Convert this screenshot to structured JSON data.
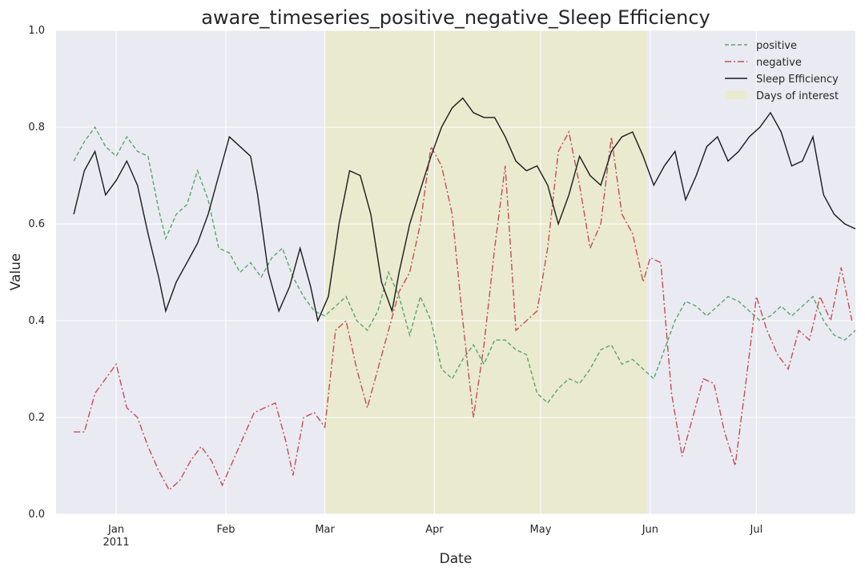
{
  "chart_data": {
    "type": "line",
    "title": "aware_timeseries_positive_negative_Sleep Efficiency",
    "xlabel": "Date",
    "ylabel": "Value",
    "ylim": [
      0,
      1
    ],
    "xlim": [
      "2010-12-15",
      "2011-07-29"
    ],
    "yticks": [
      0.0,
      0.2,
      0.4,
      0.6,
      0.8,
      1.0
    ],
    "ytick_labels": [
      "0.0",
      "0.2",
      "0.4",
      "0.6",
      "0.8",
      "1.0"
    ],
    "xticks": [
      {
        "date": "2011-01-01",
        "label": "Jan",
        "sublabel": "2011"
      },
      {
        "date": "2011-02-01",
        "label": "Feb",
        "sublabel": ""
      },
      {
        "date": "2011-03-01",
        "label": "Mar",
        "sublabel": ""
      },
      {
        "date": "2011-04-01",
        "label": "Apr",
        "sublabel": ""
      },
      {
        "date": "2011-05-01",
        "label": "May",
        "sublabel": ""
      },
      {
        "date": "2011-06-01",
        "label": "Jun",
        "sublabel": ""
      },
      {
        "date": "2011-07-01",
        "label": "Jul",
        "sublabel": ""
      }
    ],
    "grid": true,
    "legend_position": "top-right",
    "highlight": {
      "name": "Days of interest",
      "start": "2011-03-01",
      "end": "2011-05-31",
      "color": "#eaeacf"
    },
    "series": [
      {
        "name": "positive",
        "color": "#55a868",
        "style": "dashed",
        "points": [
          [
            "2010-12-20",
            0.73
          ],
          [
            "2010-12-23",
            0.77
          ],
          [
            "2010-12-26",
            0.8
          ],
          [
            "2010-12-29",
            0.76
          ],
          [
            "2011-01-01",
            0.74
          ],
          [
            "2011-01-04",
            0.78
          ],
          [
            "2011-01-07",
            0.75
          ],
          [
            "2011-01-10",
            0.74
          ],
          [
            "2011-01-13",
            0.63
          ],
          [
            "2011-01-15",
            0.57
          ],
          [
            "2011-01-18",
            0.62
          ],
          [
            "2011-01-21",
            0.64
          ],
          [
            "2011-01-24",
            0.71
          ],
          [
            "2011-01-27",
            0.65
          ],
          [
            "2011-01-30",
            0.55
          ],
          [
            "2011-02-02",
            0.54
          ],
          [
            "2011-02-05",
            0.5
          ],
          [
            "2011-02-08",
            0.52
          ],
          [
            "2011-02-11",
            0.49
          ],
          [
            "2011-02-14",
            0.53
          ],
          [
            "2011-02-17",
            0.55
          ],
          [
            "2011-02-20",
            0.49
          ],
          [
            "2011-02-23",
            0.45
          ],
          [
            "2011-02-26",
            0.42
          ],
          [
            "2011-03-01",
            0.41
          ],
          [
            "2011-03-04",
            0.43
          ],
          [
            "2011-03-07",
            0.45
          ],
          [
            "2011-03-10",
            0.4
          ],
          [
            "2011-03-13",
            0.38
          ],
          [
            "2011-03-16",
            0.42
          ],
          [
            "2011-03-19",
            0.5
          ],
          [
            "2011-03-22",
            0.45
          ],
          [
            "2011-03-25",
            0.37
          ],
          [
            "2011-03-28",
            0.45
          ],
          [
            "2011-03-31",
            0.4
          ],
          [
            "2011-04-03",
            0.3
          ],
          [
            "2011-04-06",
            0.28
          ],
          [
            "2011-04-09",
            0.32
          ],
          [
            "2011-04-12",
            0.35
          ],
          [
            "2011-04-15",
            0.31
          ],
          [
            "2011-04-18",
            0.36
          ],
          [
            "2011-04-21",
            0.36
          ],
          [
            "2011-04-24",
            0.34
          ],
          [
            "2011-04-27",
            0.33
          ],
          [
            "2011-04-30",
            0.25
          ],
          [
            "2011-05-03",
            0.23
          ],
          [
            "2011-05-06",
            0.26
          ],
          [
            "2011-05-09",
            0.28
          ],
          [
            "2011-05-12",
            0.27
          ],
          [
            "2011-05-15",
            0.3
          ],
          [
            "2011-05-18",
            0.34
          ],
          [
            "2011-05-21",
            0.35
          ],
          [
            "2011-05-24",
            0.31
          ],
          [
            "2011-05-27",
            0.32
          ],
          [
            "2011-05-30",
            0.3
          ],
          [
            "2011-06-02",
            0.28
          ],
          [
            "2011-06-05",
            0.34
          ],
          [
            "2011-06-08",
            0.4
          ],
          [
            "2011-06-11",
            0.44
          ],
          [
            "2011-06-14",
            0.43
          ],
          [
            "2011-06-17",
            0.41
          ],
          [
            "2011-06-20",
            0.43
          ],
          [
            "2011-06-23",
            0.45
          ],
          [
            "2011-06-26",
            0.44
          ],
          [
            "2011-06-29",
            0.42
          ],
          [
            "2011-07-02",
            0.4
          ],
          [
            "2011-07-05",
            0.41
          ],
          [
            "2011-07-08",
            0.43
          ],
          [
            "2011-07-11",
            0.41
          ],
          [
            "2011-07-14",
            0.43
          ],
          [
            "2011-07-17",
            0.45
          ],
          [
            "2011-07-20",
            0.4
          ],
          [
            "2011-07-23",
            0.37
          ],
          [
            "2011-07-26",
            0.36
          ],
          [
            "2011-07-29",
            0.38
          ]
        ]
      },
      {
        "name": "negative",
        "color": "#c44e52",
        "style": "dashdot",
        "points": [
          [
            "2010-12-20",
            0.17
          ],
          [
            "2010-12-23",
            0.17
          ],
          [
            "2010-12-26",
            0.25
          ],
          [
            "2010-12-29",
            0.28
          ],
          [
            "2011-01-01",
            0.31
          ],
          [
            "2011-01-04",
            0.22
          ],
          [
            "2011-01-07",
            0.2
          ],
          [
            "2011-01-10",
            0.14
          ],
          [
            "2011-01-13",
            0.09
          ],
          [
            "2011-01-16",
            0.05
          ],
          [
            "2011-01-19",
            0.07
          ],
          [
            "2011-01-22",
            0.11
          ],
          [
            "2011-01-25",
            0.14
          ],
          [
            "2011-01-28",
            0.11
          ],
          [
            "2011-01-31",
            0.06
          ],
          [
            "2011-02-03",
            0.11
          ],
          [
            "2011-02-06",
            0.16
          ],
          [
            "2011-02-09",
            0.21
          ],
          [
            "2011-02-12",
            0.22
          ],
          [
            "2011-02-15",
            0.23
          ],
          [
            "2011-02-18",
            0.15
          ],
          [
            "2011-02-20",
            0.08
          ],
          [
            "2011-02-23",
            0.2
          ],
          [
            "2011-02-26",
            0.21
          ],
          [
            "2011-03-01",
            0.18
          ],
          [
            "2011-03-04",
            0.38
          ],
          [
            "2011-03-07",
            0.4
          ],
          [
            "2011-03-10",
            0.3
          ],
          [
            "2011-03-13",
            0.22
          ],
          [
            "2011-03-16",
            0.3
          ],
          [
            "2011-03-19",
            0.38
          ],
          [
            "2011-03-22",
            0.46
          ],
          [
            "2011-03-25",
            0.5
          ],
          [
            "2011-03-28",
            0.6
          ],
          [
            "2011-03-31",
            0.76
          ],
          [
            "2011-04-03",
            0.72
          ],
          [
            "2011-04-06",
            0.62
          ],
          [
            "2011-04-09",
            0.4
          ],
          [
            "2011-04-12",
            0.2
          ],
          [
            "2011-04-15",
            0.35
          ],
          [
            "2011-04-18",
            0.55
          ],
          [
            "2011-04-21",
            0.72
          ],
          [
            "2011-04-24",
            0.38
          ],
          [
            "2011-04-27",
            0.4
          ],
          [
            "2011-04-30",
            0.42
          ],
          [
            "2011-05-03",
            0.55
          ],
          [
            "2011-05-06",
            0.75
          ],
          [
            "2011-05-09",
            0.79
          ],
          [
            "2011-05-12",
            0.68
          ],
          [
            "2011-05-15",
            0.55
          ],
          [
            "2011-05-18",
            0.6
          ],
          [
            "2011-05-21",
            0.78
          ],
          [
            "2011-05-24",
            0.62
          ],
          [
            "2011-05-27",
            0.58
          ],
          [
            "2011-05-30",
            0.48
          ],
          [
            "2011-06-01",
            0.53
          ],
          [
            "2011-06-04",
            0.52
          ],
          [
            "2011-06-07",
            0.25
          ],
          [
            "2011-06-10",
            0.12
          ],
          [
            "2011-06-13",
            0.2
          ],
          [
            "2011-06-16",
            0.28
          ],
          [
            "2011-06-19",
            0.27
          ],
          [
            "2011-06-22",
            0.17
          ],
          [
            "2011-06-25",
            0.1
          ],
          [
            "2011-06-28",
            0.27
          ],
          [
            "2011-07-01",
            0.45
          ],
          [
            "2011-07-04",
            0.38
          ],
          [
            "2011-07-07",
            0.33
          ],
          [
            "2011-07-10",
            0.3
          ],
          [
            "2011-07-13",
            0.38
          ],
          [
            "2011-07-16",
            0.36
          ],
          [
            "2011-07-19",
            0.45
          ],
          [
            "2011-07-22",
            0.4
          ],
          [
            "2011-07-25",
            0.51
          ],
          [
            "2011-07-28",
            0.4
          ]
        ]
      },
      {
        "name": "Sleep Efficiency",
        "color": "#1a1a1a",
        "style": "solid",
        "points": [
          [
            "2010-12-20",
            0.62
          ],
          [
            "2010-12-23",
            0.71
          ],
          [
            "2010-12-26",
            0.75
          ],
          [
            "2010-12-29",
            0.66
          ],
          [
            "2011-01-01",
            0.69
          ],
          [
            "2011-01-04",
            0.73
          ],
          [
            "2011-01-07",
            0.68
          ],
          [
            "2011-01-10",
            0.58
          ],
          [
            "2011-01-13",
            0.49
          ],
          [
            "2011-01-15",
            0.42
          ],
          [
            "2011-01-18",
            0.48
          ],
          [
            "2011-01-21",
            0.52
          ],
          [
            "2011-01-24",
            0.56
          ],
          [
            "2011-01-27",
            0.62
          ],
          [
            "2011-01-30",
            0.7
          ],
          [
            "2011-02-02",
            0.78
          ],
          [
            "2011-02-05",
            0.76
          ],
          [
            "2011-02-08",
            0.74
          ],
          [
            "2011-02-10",
            0.66
          ],
          [
            "2011-02-13",
            0.5
          ],
          [
            "2011-02-16",
            0.42
          ],
          [
            "2011-02-19",
            0.47
          ],
          [
            "2011-02-22",
            0.55
          ],
          [
            "2011-02-25",
            0.47
          ],
          [
            "2011-02-27",
            0.4
          ],
          [
            "2011-03-02",
            0.45
          ],
          [
            "2011-03-05",
            0.6
          ],
          [
            "2011-03-08",
            0.71
          ],
          [
            "2011-03-11",
            0.7
          ],
          [
            "2011-03-14",
            0.62
          ],
          [
            "2011-03-17",
            0.48
          ],
          [
            "2011-03-20",
            0.42
          ],
          [
            "2011-03-22",
            0.5
          ],
          [
            "2011-03-25",
            0.6
          ],
          [
            "2011-03-28",
            0.67
          ],
          [
            "2011-03-31",
            0.74
          ],
          [
            "2011-04-03",
            0.8
          ],
          [
            "2011-04-06",
            0.84
          ],
          [
            "2011-04-09",
            0.86
          ],
          [
            "2011-04-12",
            0.83
          ],
          [
            "2011-04-15",
            0.82
          ],
          [
            "2011-04-18",
            0.82
          ],
          [
            "2011-04-21",
            0.78
          ],
          [
            "2011-04-24",
            0.73
          ],
          [
            "2011-04-27",
            0.71
          ],
          [
            "2011-04-30",
            0.72
          ],
          [
            "2011-05-03",
            0.68
          ],
          [
            "2011-05-06",
            0.6
          ],
          [
            "2011-05-09",
            0.66
          ],
          [
            "2011-05-12",
            0.74
          ],
          [
            "2011-05-15",
            0.7
          ],
          [
            "2011-05-18",
            0.68
          ],
          [
            "2011-05-21",
            0.75
          ],
          [
            "2011-05-24",
            0.78
          ],
          [
            "2011-05-27",
            0.79
          ],
          [
            "2011-05-30",
            0.74
          ],
          [
            "2011-06-02",
            0.68
          ],
          [
            "2011-06-05",
            0.72
          ],
          [
            "2011-06-08",
            0.75
          ],
          [
            "2011-06-11",
            0.65
          ],
          [
            "2011-06-14",
            0.7
          ],
          [
            "2011-06-17",
            0.76
          ],
          [
            "2011-06-20",
            0.78
          ],
          [
            "2011-06-23",
            0.73
          ],
          [
            "2011-06-26",
            0.75
          ],
          [
            "2011-06-29",
            0.78
          ],
          [
            "2011-07-02",
            0.8
          ],
          [
            "2011-07-05",
            0.83
          ],
          [
            "2011-07-08",
            0.79
          ],
          [
            "2011-07-11",
            0.72
          ],
          [
            "2011-07-14",
            0.73
          ],
          [
            "2011-07-17",
            0.78
          ],
          [
            "2011-07-20",
            0.66
          ],
          [
            "2011-07-23",
            0.62
          ],
          [
            "2011-07-26",
            0.6
          ],
          [
            "2011-07-29",
            0.59
          ]
        ]
      }
    ]
  }
}
